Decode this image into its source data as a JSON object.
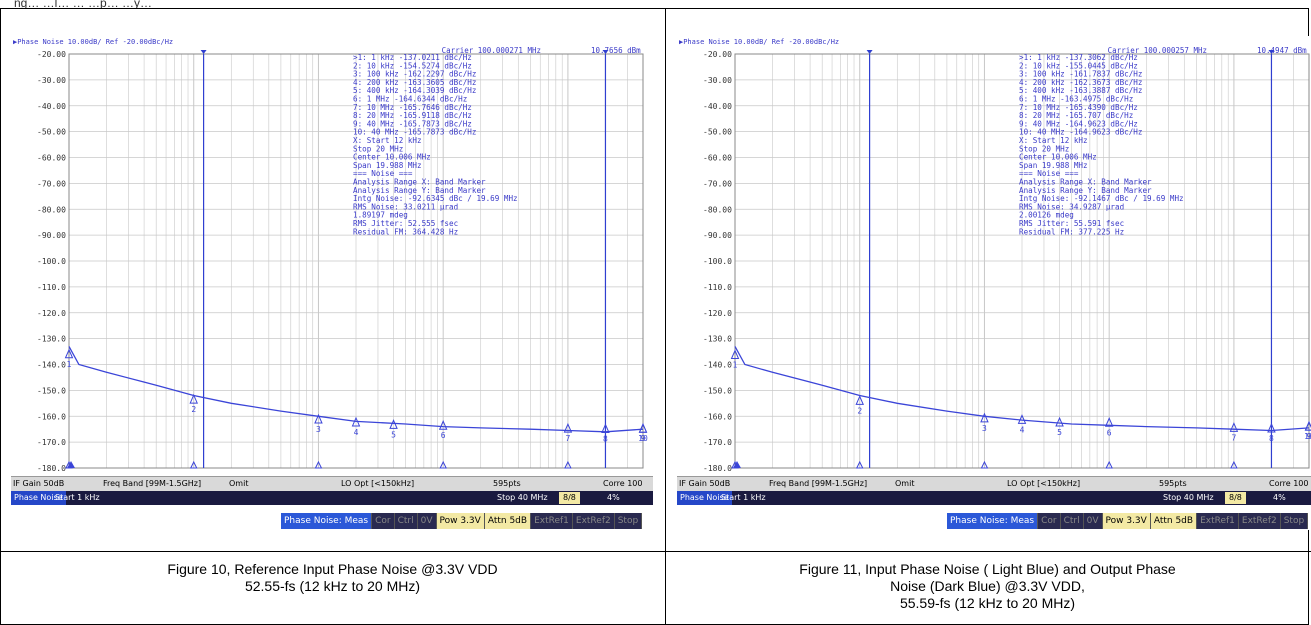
{
  "top_text": "ng… …l…          … …p…  …y…",
  "captions": {
    "left": "Figure 10, Reference Input Phase Noise  @3.3V VDD\n52.55-fs (12 kHz to 20 MHz)",
    "right": "Figure 11, Input Phase Noise ( Light Blue) and Output Phase\nNoise (Dark Blue)  @3.3V VDD,\n55.59-fs (12 kHz to 20 MHz)"
  },
  "colors": {
    "trace": "#3b45d8",
    "marker_line": "#2f3fd0",
    "grid": "#c8c8c8",
    "text": "#3a3ac8"
  },
  "chart_data": [
    {
      "type": "line",
      "header": "▶Phase Noise 10.00dB/ Ref -20.00dBc/Hz",
      "carrier": "Carrier 100.000271 MHz",
      "carrier_power": "10.7656 dBm",
      "ylim": [
        -180,
        -20
      ],
      "y_ticks": [
        "-20.00",
        "-30.00",
        "-40.00",
        "-50.00",
        "-60.00",
        "-70.00",
        "-80.00",
        "-90.00",
        "-100.0",
        "-110.0",
        "-120.0",
        "-130.0",
        "-140.0",
        "-150.0",
        "-160.0",
        "-170.0",
        "-180.0"
      ],
      "x_scale": "log",
      "xlim_hz": [
        1000,
        40000000
      ],
      "trace": [
        [
          1000,
          -133
        ],
        [
          1200,
          -140
        ],
        [
          2000,
          -143
        ],
        [
          5000,
          -148
        ],
        [
          10000,
          -152
        ],
        [
          20000,
          -155
        ],
        [
          50000,
          -158
        ],
        [
          100000,
          -160
        ],
        [
          200000,
          -162
        ],
        [
          500000,
          -163
        ],
        [
          1000000,
          -164
        ],
        [
          2000000,
          -164.5
        ],
        [
          5000000,
          -165
        ],
        [
          10000000,
          -165.5
        ],
        [
          20000000,
          -166
        ],
        [
          40000000,
          -165
        ]
      ],
      "band_markers_hz": [
        12000,
        20000000
      ],
      "markers": [
        {
          "n": "1",
          "x_hz": 1000,
          "y": -137.0211
        },
        {
          "n": "2",
          "x_hz": 10000,
          "y": -154.5274
        },
        {
          "n": "3",
          "x_hz": 100000,
          "y": -162.2297
        },
        {
          "n": "4",
          "x_hz": 200000,
          "y": -163.3605
        },
        {
          "n": "5",
          "x_hz": 400000,
          "y": -164.3039
        },
        {
          "n": "6",
          "x_hz": 1000000,
          "y": -164.6344
        },
        {
          "n": "7",
          "x_hz": 10000000,
          "y": -165.7646
        },
        {
          "n": "8",
          "x_hz": 20000000,
          "y": -165.9118
        },
        {
          "n": "9",
          "x_hz": 40000000,
          "y": -165.7873
        },
        {
          "n": "10",
          "x_hz": 40000000,
          "y": -165.7873
        }
      ],
      "marker_table": [
        ">1:   1 kHz    -137.0211 dBc/Hz",
        " 2:  10 kHz    -154.5274 dBc/Hz",
        " 3: 100 kHz    -162.2297 dBc/Hz",
        " 4: 200 kHz    -163.3605 dBc/Hz",
        " 5: 400 kHz    -164.3039 dBc/Hz",
        " 6:   1 MHz    -164.6344 dBc/Hz",
        " 7:  10 MHz    -165.7646 dBc/Hz",
        " 8:  20 MHz    -165.9118 dBc/Hz",
        " 9:  40 MHz    -165.7873 dBc/Hz",
        "10:  40 MHz    -165.7873 dBc/Hz"
      ],
      "analysis_text": [
        " X: Start 12 kHz",
        "     Stop 20 MHz",
        "   Center 10.006 MHz",
        "     Span 19.988 MHz",
        "=== Noise ===",
        "Analysis Range X: Band Marker",
        "Analysis Range Y: Band Marker",
        "Intg Noise: -92.6345 dBc / 19.69 MHz",
        " RMS Noise: 33.0211 µrad",
        "            1.89197 mdeg",
        "RMS Jitter: 52.555 fsec",
        "Residual FM: 364.428 Hz"
      ],
      "status": {
        "if_gain": "IF Gain 50dB",
        "freq_band": "Freq Band [99M-1.5GHz]",
        "omit": "Omit",
        "lo_opt": "LO Opt [<150kHz]",
        "points": "595pts",
        "corr": "Corre 100"
      },
      "mode": {
        "tag": "Phase Noise",
        "start": "Start 1 kHz",
        "stop": "Stop 40 MHz",
        "count": "8/8",
        "percent": "4%"
      },
      "softkeys": [
        "Phase Noise: Meas",
        "Cor",
        "Ctrl",
        "0V",
        "Pow  3.3V",
        "Attn 5dB",
        "ExtRef1",
        "ExtRef2",
        "Stop"
      ]
    },
    {
      "type": "line",
      "header": "▶Phase Noise 10.00dB/ Ref -20.00dBc/Hz",
      "carrier": "Carrier 100.000257 MHz",
      "carrier_power": "10.4947 dBm",
      "ylim": [
        -180,
        -20
      ],
      "y_ticks": [
        "-20.00",
        "-30.00",
        "-40.00",
        "-50.00",
        "-60.00",
        "-70.00",
        "-80.00",
        "-90.00",
        "-100.0",
        "-110.0",
        "-120.0",
        "-130.0",
        "-140.0",
        "-150.0",
        "-160.0",
        "-170.0",
        "-180.0"
      ],
      "x_scale": "log",
      "xlim_hz": [
        1000,
        40000000
      ],
      "trace": [
        [
          1000,
          -133
        ],
        [
          1200,
          -140
        ],
        [
          2000,
          -143
        ],
        [
          5000,
          -148
        ],
        [
          10000,
          -152
        ],
        [
          20000,
          -155
        ],
        [
          50000,
          -158
        ],
        [
          100000,
          -160
        ],
        [
          200000,
          -161.5
        ],
        [
          500000,
          -163
        ],
        [
          1000000,
          -163.5
        ],
        [
          2000000,
          -164
        ],
        [
          5000000,
          -164.5
        ],
        [
          10000000,
          -165
        ],
        [
          20000000,
          -165.5
        ],
        [
          40000000,
          -164.5
        ]
      ],
      "band_markers_hz": [
        12000,
        20000000
      ],
      "markers": [
        {
          "n": "1",
          "x_hz": 1000,
          "y": -137.3062
        },
        {
          "n": "2",
          "x_hz": 10000,
          "y": -155.0445
        },
        {
          "n": "3",
          "x_hz": 100000,
          "y": -161.7837
        },
        {
          "n": "4",
          "x_hz": 200000,
          "y": -162.3673
        },
        {
          "n": "5",
          "x_hz": 400000,
          "y": -163.3887
        },
        {
          "n": "6",
          "x_hz": 1000000,
          "y": -163.4975
        },
        {
          "n": "7",
          "x_hz": 10000000,
          "y": -165.439
        },
        {
          "n": "8",
          "x_hz": 20000000,
          "y": -165.707
        },
        {
          "n": "9",
          "x_hz": 40000000,
          "y": -164.9623
        },
        {
          "n": "10",
          "x_hz": 40000000,
          "y": -164.9623
        }
      ],
      "marker_table": [
        ">1:   1 kHz    -137.3062 dBc/Hz",
        " 2:  10 kHz    -155.0445 dBc/Hz",
        " 3: 100 kHz    -161.7837 dBc/Hz",
        " 4: 200 kHz    -162.3673 dBc/Hz",
        " 5: 400 kHz    -163.3887 dBc/Hz",
        " 6:   1 MHz    -163.4975 dBc/Hz",
        " 7:  10 MHz    -165.4390 dBc/Hz",
        " 8:  20 MHz    -165.707 dBc/Hz",
        " 9:  40 MHz    -164.9623 dBc/Hz",
        "10:  40 MHz    -164.9623 dBc/Hz"
      ],
      "analysis_text": [
        " X: Start 12 kHz",
        "     Stop 20 MHz",
        "   Center 10.006 MHz",
        "     Span 19.988 MHz",
        "=== Noise ===",
        "Analysis Range X: Band Marker",
        "Analysis Range Y: Band Marker",
        "Intg Noise: -92.1467 dBc / 19.69 MHz",
        " RMS Noise: 34.9287 µrad",
        "            2.00126 mdeg",
        "RMS Jitter: 55.591 fsec",
        "Residual FM: 377.225 Hz"
      ],
      "status": {
        "if_gain": "IF Gain 50dB",
        "freq_band": "Freq Band [99M-1.5GHz]",
        "omit": "Omit",
        "lo_opt": "LO Opt [<150kHz]",
        "points": "595pts",
        "corr": "Corre 100"
      },
      "mode": {
        "tag": "Phase Noise",
        "start": "Start 1 kHz",
        "stop": "Stop 40 MHz",
        "count": "8/8",
        "percent": "4%"
      },
      "softkeys": [
        "Phase Noise: Meas",
        "Cor",
        "Ctrl",
        "0V",
        "Pow  3.3V",
        "Attn 5dB",
        "ExtRef1",
        "ExtRef2",
        "Stop"
      ]
    }
  ]
}
